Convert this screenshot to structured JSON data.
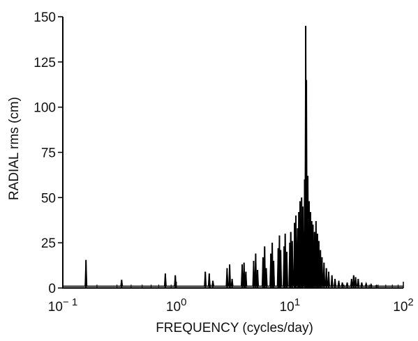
{
  "chart_data": {
    "type": "line",
    "title": "",
    "xlabel": "FREQUENCY (cycles/day)",
    "ylabel": "RADIAL rms (cm)",
    "x_scale": "log",
    "xlim": [
      0.1,
      100
    ],
    "ylim": [
      0,
      150
    ],
    "grid": false,
    "x_ticks": [
      {
        "value": 0.1,
        "base": "10",
        "exp": "− 1"
      },
      {
        "value": 1,
        "base": "10",
        "exp": "0"
      },
      {
        "value": 10,
        "base": "10",
        "exp": "1"
      },
      {
        "value": 100,
        "base": "10",
        "exp": "2"
      }
    ],
    "y_ticks": [
      0,
      25,
      50,
      75,
      100,
      125,
      150
    ],
    "y_tick_labels": [
      "0",
      "25",
      "50",
      "75",
      "100",
      "125",
      "150"
    ],
    "series": [
      {
        "color": "#000000",
        "peaks": [
          [
            0.16,
            15.5
          ],
          [
            0.33,
            4.5
          ],
          [
            0.8,
            8
          ],
          [
            0.98,
            7
          ],
          [
            1.8,
            9
          ],
          [
            1.95,
            8
          ],
          [
            2.1,
            4
          ],
          [
            2.8,
            11
          ],
          [
            2.95,
            13
          ],
          [
            3.1,
            5
          ],
          [
            3.8,
            13
          ],
          [
            3.95,
            14
          ],
          [
            4.1,
            9
          ],
          [
            4.8,
            15
          ],
          [
            5.0,
            19
          ],
          [
            5.2,
            10
          ],
          [
            5.8,
            17
          ],
          [
            6.0,
            23
          ],
          [
            6.2,
            11
          ],
          [
            6.8,
            19
          ],
          [
            7.0,
            25
          ],
          [
            7.2,
            15
          ],
          [
            7.9,
            22
          ],
          [
            8.1,
            29
          ],
          [
            8.3,
            21
          ],
          [
            8.9,
            23
          ],
          [
            9.1,
            30
          ],
          [
            9.4,
            20
          ],
          [
            10.0,
            25
          ],
          [
            10.2,
            31
          ],
          [
            10.5,
            26
          ],
          [
            11.0,
            36
          ],
          [
            11.3,
            40
          ],
          [
            11.7,
            33
          ],
          [
            12.0,
            42
          ],
          [
            12.3,
            48
          ],
          [
            12.7,
            50
          ],
          [
            13.0,
            45
          ],
          [
            13.5,
            60
          ],
          [
            13.8,
            145
          ],
          [
            14.0,
            115
          ],
          [
            14.4,
            62
          ],
          [
            14.8,
            48
          ],
          [
            15.2,
            42
          ],
          [
            15.6,
            37
          ],
          [
            16.0,
            35
          ],
          [
            16.5,
            31
          ],
          [
            17.0,
            37
          ],
          [
            17.5,
            30
          ],
          [
            18.0,
            26
          ],
          [
            18.6,
            21
          ],
          [
            19.2,
            17
          ],
          [
            20.0,
            14
          ],
          [
            21.0,
            11
          ],
          [
            22.0,
            9
          ],
          [
            23.5,
            7
          ],
          [
            25.0,
            5
          ],
          [
            27.0,
            4
          ],
          [
            29.0,
            3
          ],
          [
            32.0,
            3
          ],
          [
            35.0,
            5
          ],
          [
            36.5,
            7
          ],
          [
            38.0,
            6
          ],
          [
            40.0,
            5
          ],
          [
            43.0,
            3
          ],
          [
            47.0,
            2.5
          ],
          [
            52.0,
            2
          ],
          [
            58.0,
            1.5
          ]
        ]
      }
    ]
  }
}
